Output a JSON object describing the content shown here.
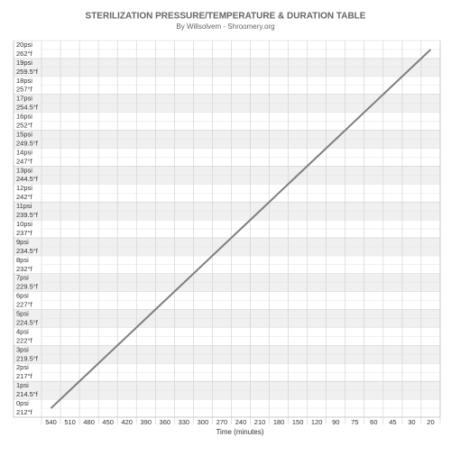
{
  "chart_data": {
    "type": "line",
    "title": "STERILIZATION PRESSURE/TEMPERATURE & DURATION TABLE",
    "subtitle": "By Willsolvem - Shroomery.org",
    "x_label": "Time (minutes)",
    "categories": [
      "540",
      "510",
      "480",
      "450",
      "420",
      "390",
      "360",
      "330",
      "300",
      "270",
      "240",
      "210",
      "180",
      "150",
      "120",
      "90",
      "75",
      "60",
      "45",
      "30",
      "20"
    ],
    "values": [
      0,
      1,
      2,
      3,
      4,
      5,
      6,
      7,
      8,
      9,
      10,
      11,
      12,
      13,
      14,
      15,
      16,
      17,
      18,
      19,
      20
    ],
    "color": "#7f7f7f",
    "ylim": [
      -0.5,
      20.5
    ],
    "yticks": [
      {
        "value": 0,
        "label": "0psi"
      },
      {
        "value": 1,
        "label": "1psi"
      },
      {
        "value": 2,
        "label": "2psi"
      },
      {
        "value": 3,
        "label": "3psi"
      },
      {
        "value": 4,
        "label": "4psi"
      },
      {
        "value": 5,
        "label": "5psi"
      },
      {
        "value": 6,
        "label": "6psi"
      },
      {
        "value": 7,
        "label": "7psi"
      },
      {
        "value": 8,
        "label": "8psi"
      },
      {
        "value": 9,
        "label": "9psi"
      },
      {
        "value": 10,
        "label": "10psi"
      },
      {
        "value": 11,
        "label": "11psi"
      },
      {
        "value": 12,
        "label": "12psi"
      },
      {
        "value": 13,
        "label": "13psi"
      },
      {
        "value": 14,
        "label": "14psi"
      },
      {
        "value": 15,
        "label": "15psi"
      },
      {
        "value": 16,
        "label": "16psi"
      },
      {
        "value": 17,
        "label": "17psi"
      },
      {
        "value": 18,
        "label": "18psi"
      },
      {
        "value": 19,
        "label": "19psi"
      },
      {
        "value": 20,
        "label": "20psi"
      }
    ],
    "ytick_temps": [
      "212°f",
      "214.5°f",
      "217°f",
      "219.5°f",
      "222°f",
      "224.5°f",
      "227°f",
      "229.5°f",
      "232°f",
      "234.5°f",
      "237°f",
      "239.5°f",
      "242°f",
      "244.5°f",
      "247°f",
      "249.5°f",
      "252°f",
      "254.5°f",
      "257°f",
      "259.5°f",
      "262°f"
    ],
    "shade": "#f0f0f0",
    "grid": true
  }
}
